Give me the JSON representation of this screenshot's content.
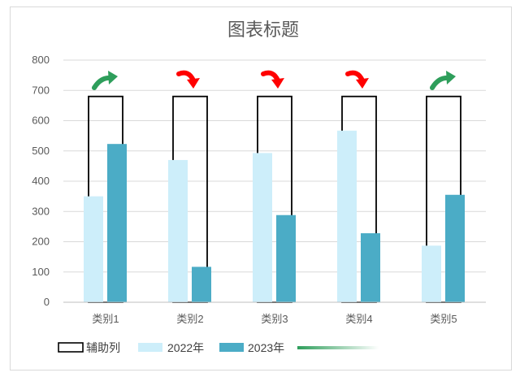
{
  "chart_data": {
    "type": "bar",
    "title": "图表标题",
    "categories": [
      "类别1",
      "类别2",
      "类别3",
      "类别4",
      "类别5"
    ],
    "series": [
      {
        "name": "辅助列",
        "values": [
          680,
          680,
          680,
          680,
          680
        ],
        "style": "outline"
      },
      {
        "name": "2022年",
        "values": [
          350,
          470,
          493,
          567,
          187
        ],
        "color": "#cdeefa"
      },
      {
        "name": "2023年",
        "values": [
          523,
          117,
          288,
          228,
          355
        ],
        "color": "#4bacc6"
      }
    ],
    "trend_icons": [
      "up",
      "down",
      "down",
      "down",
      "up"
    ],
    "trend_colors": {
      "up": "#2e9e5b",
      "down": "#ff0000"
    },
    "legend_extra": {
      "color": "#2e9e5b"
    },
    "ylim": [
      0,
      800
    ],
    "yticks": [
      0,
      100,
      200,
      300,
      400,
      500,
      600,
      700,
      800
    ],
    "grid": true,
    "legend_position": "bottom"
  }
}
